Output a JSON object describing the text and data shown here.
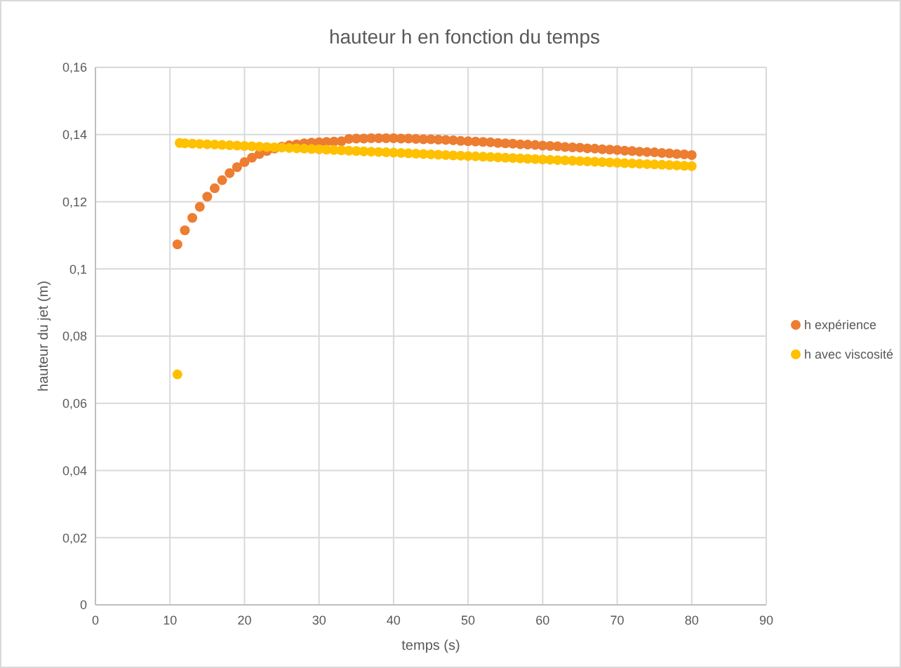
{
  "chart_data": {
    "type": "scatter",
    "title": "hauteur h en fonction du temps",
    "xlabel": "temps (s)",
    "ylabel": "hauteur du jet (m)",
    "xlim": [
      0,
      90
    ],
    "xticks": [
      0,
      10,
      20,
      30,
      40,
      50,
      60,
      70,
      80,
      90
    ],
    "ylim": [
      0,
      0.16
    ],
    "yticks": [
      {
        "value": 0,
        "label": "0"
      },
      {
        "value": 0.02,
        "label": "0,02"
      },
      {
        "value": 0.04,
        "label": "0,04"
      },
      {
        "value": 0.06,
        "label": "0,06"
      },
      {
        "value": 0.08,
        "label": "0,08"
      },
      {
        "value": 0.1,
        "label": "0,1"
      },
      {
        "value": 0.12,
        "label": "0,12"
      },
      {
        "value": 0.14,
        "label": "0,14"
      },
      {
        "value": 0.16,
        "label": "0,16"
      }
    ],
    "grid": true,
    "legend": "right",
    "marker": "circle",
    "series": [
      {
        "name": "h expérience",
        "color": "#ed7d31",
        "x": [
          11,
          12,
          13,
          14,
          15,
          16,
          17,
          18,
          19,
          20,
          21,
          22,
          23,
          24,
          25,
          26,
          27,
          28,
          29,
          30,
          31,
          32,
          33,
          34,
          35,
          36,
          37,
          38,
          39,
          40,
          41,
          42,
          43,
          44,
          45,
          46,
          47,
          48,
          49,
          50,
          51,
          52,
          53,
          54,
          55,
          56,
          57,
          58,
          59,
          60,
          61,
          62,
          63,
          64,
          65,
          66,
          67,
          68,
          69,
          70,
          71,
          72,
          73,
          74,
          75,
          76,
          77,
          78,
          79,
          80
        ],
        "values": [
          0.1073,
          0.1115,
          0.1152,
          0.1185,
          0.1215,
          0.124,
          0.1264,
          0.1285,
          0.1303,
          0.1318,
          0.1331,
          0.1342,
          0.1351,
          0.1358,
          0.1364,
          0.1368,
          0.1371,
          0.1374,
          0.1376,
          0.1377,
          0.1378,
          0.1379,
          0.138,
          0.1387,
          0.1388,
          0.1388,
          0.1389,
          0.1389,
          0.1389,
          0.1389,
          0.1388,
          0.1388,
          0.1387,
          0.1386,
          0.1386,
          0.1385,
          0.1384,
          0.1383,
          0.1381,
          0.138,
          0.1379,
          0.1378,
          0.1377,
          0.1375,
          0.1374,
          0.1373,
          0.1371,
          0.137,
          0.1369,
          0.1367,
          0.1366,
          0.1365,
          0.1363,
          0.1362,
          0.1361,
          0.1359,
          0.1358,
          0.1356,
          0.1355,
          0.1354,
          0.1352,
          0.1351,
          0.1349,
          0.1348,
          0.1347,
          0.1345,
          0.1344,
          0.1342,
          0.1341,
          0.1339
        ]
      },
      {
        "name": "h avec viscosité",
        "color": "#ffc000",
        "x": [
          11,
          11.3,
          12,
          13,
          14,
          15,
          16,
          17,
          18,
          19,
          20,
          21,
          22,
          23,
          24,
          25,
          26,
          27,
          28,
          29,
          30,
          31,
          32,
          33,
          34,
          35,
          36,
          37,
          38,
          39,
          40,
          41,
          42,
          43,
          44,
          45,
          46,
          47,
          48,
          49,
          50,
          51,
          52,
          53,
          54,
          55,
          56,
          57,
          58,
          59,
          60,
          61,
          62,
          63,
          64,
          65,
          66,
          67,
          68,
          69,
          70,
          71,
          72,
          73,
          74,
          75,
          76,
          77,
          78,
          79,
          80
        ],
        "values": [
          0.0686,
          0.1375,
          0.1374,
          0.1373,
          0.1372,
          0.1371,
          0.137,
          0.1369,
          0.1368,
          0.1367,
          0.1366,
          0.1365,
          0.1364,
          0.1363,
          0.1362,
          0.1361,
          0.136,
          0.1359,
          0.1358,
          0.1357,
          0.1356,
          0.1355,
          0.1354,
          0.1353,
          0.1352,
          0.1351,
          0.135,
          0.1349,
          0.1348,
          0.1347,
          0.1346,
          0.1345,
          0.1344,
          0.1343,
          0.1342,
          0.1341,
          0.134,
          0.1339,
          0.1338,
          0.1337,
          0.1336,
          0.1335,
          0.1334,
          0.1333,
          0.1332,
          0.1331,
          0.133,
          0.1329,
          0.1328,
          0.1327,
          0.1326,
          0.1325,
          0.1324,
          0.1323,
          0.1322,
          0.1321,
          0.132,
          0.1319,
          0.1318,
          0.1317,
          0.1316,
          0.1315,
          0.1314,
          0.1313,
          0.1312,
          0.1311,
          0.131,
          0.1309,
          0.1308,
          0.1307,
          0.1306
        ]
      }
    ]
  }
}
